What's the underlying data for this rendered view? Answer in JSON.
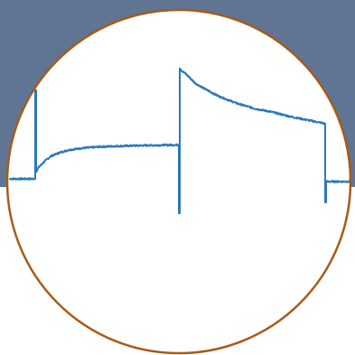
{
  "colors": {
    "band": "#5f7593",
    "disc": "#ffffff",
    "rim": "#a75b17",
    "trace": "#2a79b8"
  },
  "chart_data": {
    "type": "line",
    "title": "",
    "xlabel": "",
    "ylabel": "",
    "axes_visible": false,
    "grid": false,
    "legend": "none",
    "xlim": [
      0,
      380
    ],
    "ylim": [
      0,
      300
    ],
    "series": [
      {
        "values": [
          [
            0,
            152
          ],
          [
            27,
            152
          ],
          [
            28,
            152
          ],
          [
            28,
            250
          ],
          [
            29,
            250
          ],
          [
            29,
            160
          ],
          [
            32,
            165
          ],
          [
            38,
            171
          ],
          [
            45,
            177
          ],
          [
            55,
            181
          ],
          [
            65,
            184
          ],
          [
            80,
            186
          ],
          [
            100,
            187.5
          ],
          [
            120,
            188.3
          ],
          [
            140,
            188.8
          ],
          [
            160,
            189.2
          ],
          [
            186,
            189.6
          ],
          [
            187,
            189.6
          ],
          [
            187,
            114
          ],
          [
            188,
            114
          ],
          [
            188,
            275
          ],
          [
            190,
            272
          ],
          [
            196,
            267
          ],
          [
            205,
            258
          ],
          [
            215,
            252
          ],
          [
            230,
            244
          ],
          [
            250,
            236
          ],
          [
            270,
            230
          ],
          [
            290,
            226
          ],
          [
            310,
            221
          ],
          [
            330,
            217
          ],
          [
            345,
            214
          ],
          [
            349,
            213
          ],
          [
            349,
            126
          ],
          [
            350,
            126
          ],
          [
            350,
            149
          ],
          [
            352,
            149
          ],
          [
            355,
            149
          ],
          [
            380,
            149
          ]
        ]
      }
    ]
  }
}
